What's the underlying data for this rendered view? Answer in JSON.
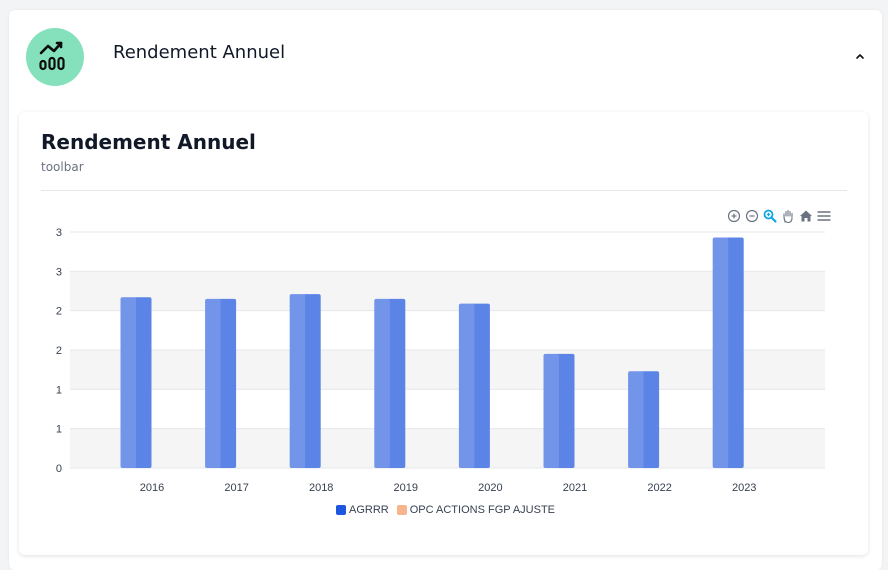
{
  "header": {
    "title": "Rendement Annuel",
    "icon": "chart-growth-icon",
    "icon_bg": "#84e1bc"
  },
  "card": {
    "title": "Rendement Annuel",
    "subtitle": "toolbar"
  },
  "toolbar": {
    "icons": [
      "zoom-in-icon",
      "zoom-out-icon",
      "zoom-selection-icon",
      "pan-icon",
      "reset-home-icon",
      "menu-icon"
    ],
    "active_color": "#0ea5e9"
  },
  "chart_data": {
    "type": "bar",
    "title": "Rendement Annuel",
    "subtitle": "toolbar",
    "categories": [
      "2016",
      "2017",
      "2018",
      "2019",
      "2020",
      "2021",
      "2022",
      "2023"
    ],
    "series": [
      {
        "name": "AGRRR",
        "color": "#1e56e0",
        "values": [
          2.17,
          2.15,
          2.21,
          2.15,
          2.09,
          1.45,
          1.23,
          2.93
        ]
      },
      {
        "name": "OPC ACTIONS FGP AJUSTE",
        "color": "#f8b48c",
        "values": [
          null,
          null,
          null,
          null,
          null,
          null,
          null,
          null
        ]
      }
    ],
    "y_ticks": [
      "0",
      "1",
      "1",
      "2",
      "2",
      "3",
      "3"
    ],
    "y_range": [
      0,
      3
    ],
    "grid": true,
    "legend_position": "bottom"
  }
}
